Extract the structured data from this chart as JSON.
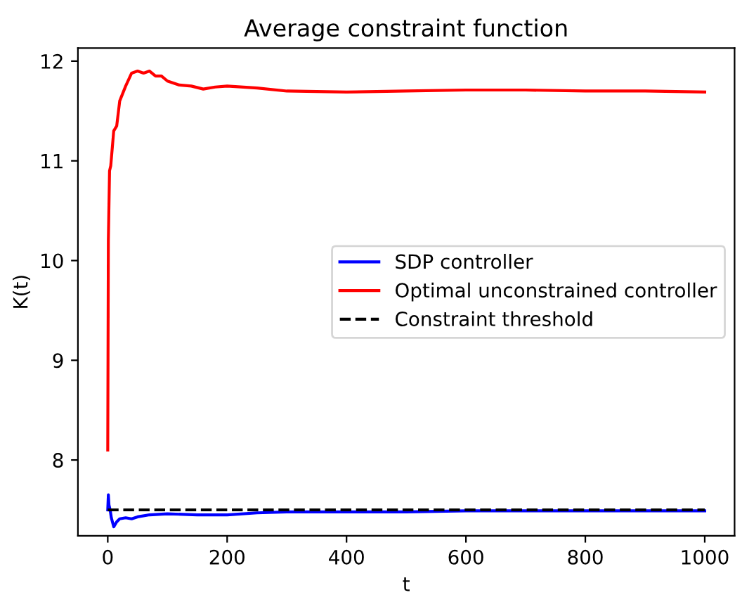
{
  "chart_data": {
    "type": "line",
    "title": "Average constraint function",
    "xlabel": "t",
    "ylabel": "K(t)",
    "xlim": [
      -50,
      1050
    ],
    "ylim": [
      7.24,
      12.13
    ],
    "xticks": [
      0,
      200,
      400,
      600,
      800,
      1000
    ],
    "yticks": [
      8,
      9,
      10,
      11,
      12
    ],
    "grid": false,
    "legend": "center right",
    "series": [
      {
        "name": "SDP controller",
        "color": "#0000ff",
        "line_style": "solid",
        "x": [
          0,
          1,
          2,
          4,
          6,
          10,
          15,
          20,
          30,
          40,
          50,
          70,
          100,
          150,
          200,
          250,
          300,
          400,
          500,
          600,
          700,
          800,
          900,
          1000
        ],
        "values": [
          7.5,
          7.65,
          7.55,
          7.5,
          7.42,
          7.33,
          7.38,
          7.41,
          7.42,
          7.41,
          7.43,
          7.45,
          7.46,
          7.45,
          7.45,
          7.47,
          7.48,
          7.48,
          7.48,
          7.49,
          7.49,
          7.49,
          7.49,
          7.49
        ]
      },
      {
        "name": "Optimal unconstrained controller",
        "color": "#ff0000",
        "line_style": "solid",
        "x": [
          0,
          1,
          3,
          5,
          10,
          15,
          20,
          30,
          40,
          50,
          60,
          70,
          80,
          90,
          100,
          120,
          140,
          160,
          180,
          200,
          250,
          300,
          400,
          500,
          600,
          700,
          800,
          900,
          1000
        ],
        "values": [
          8.1,
          10.2,
          10.9,
          10.95,
          11.3,
          11.35,
          11.6,
          11.75,
          11.88,
          11.9,
          11.88,
          11.9,
          11.85,
          11.85,
          11.8,
          11.76,
          11.75,
          11.72,
          11.74,
          11.75,
          11.73,
          11.7,
          11.69,
          11.7,
          11.71,
          11.71,
          11.7,
          11.7,
          11.69
        ]
      },
      {
        "name": "Constraint threshold",
        "color": "#000000",
        "line_style": "dashed",
        "x": [
          0,
          1000
        ],
        "values": [
          7.5,
          7.5
        ]
      }
    ]
  }
}
